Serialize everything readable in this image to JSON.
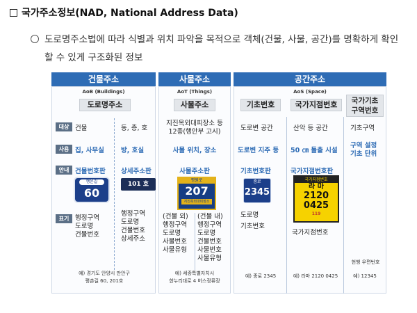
{
  "heading": "국가주소정보(NAD, National Address Data)",
  "subtitle": "도로명주소법에 따라 식별과 위치 파악을 목적으로 객체(건물, 사물, 공간)를 명확하게 확인할 수 있게 구조화된 정보",
  "row_tags": [
    "대상",
    "사용",
    "안내",
    "표기"
  ],
  "groups": [
    {
      "title": "건물주소",
      "sub": "AoB (Buildings)"
    },
    {
      "title": "사물주소",
      "sub": "AoT (Things)"
    },
    {
      "title": "공간주소",
      "sub": "AoS (Space)"
    }
  ],
  "building": {
    "pill": "도로명주소",
    "target_a": "건물",
    "target_b": "동, 층, 호",
    "use_a": "집, 사무실",
    "use_b": "방, 호실",
    "guide_a": "건물번호판",
    "guide_b": "상세주소판",
    "plate_a_top": "행운길",
    "plate_a_num": "60",
    "plate_b": "101 호",
    "mark_a": "행정구역\n도로명\n건물번호",
    "mark_b": "행정구역\n도로명\n건물번호\n상세주소",
    "example": "예) 경기도 안양시 만안구\n평촌길 60, 201호"
  },
  "object": {
    "pill": "사물주소",
    "target": "지진옥외대피장소 등\n12종(행안부 고시)",
    "use": "사물 위치, 장소",
    "guide": "사물주소판",
    "plate_top": "평원로",
    "plate_num": "207",
    "plate_bot": "지진옥외대피장소",
    "mark_a": "(건물 외)\n행정구역\n도로명\n사물번호\n사물유형",
    "mark_b": "(건물 내)\n행정구역\n도로명\n건물번호\n사물번호\n사물유형",
    "example": "예) 세종특별자치시\n한누리대로 4 버스정류장"
  },
  "space": {
    "pill_a": "기초번호",
    "pill_b": "국가지점번호",
    "pill_c": "국가기초\n구역번호",
    "target_a": "도로변 공간",
    "target_b": "산악 등 공간",
    "target_c": "기초구역",
    "use_a": "도로변 지주 등",
    "use_b": "50 ㎝ 돌출 시설",
    "use_c": "구역 설정\n기초 단위",
    "guide_a": "기초번호판",
    "guide_b": "국가지점번호판",
    "plate_a_top": "종로",
    "plate_a_num": "2345",
    "plate_b_top": "국가지점번호",
    "plate_b_mid": "라 마",
    "plate_b_num1": "2120",
    "plate_b_num2": "0425",
    "plate_b_code": "119",
    "mark_a": "도로명\n기초번호",
    "mark_b": "국가지점번호",
    "mark_c_label": "현행 우편번호",
    "example_a": "예) 종로 2345",
    "example_b": "예) 라마 2120 0425",
    "example_c": "예) 12345"
  }
}
